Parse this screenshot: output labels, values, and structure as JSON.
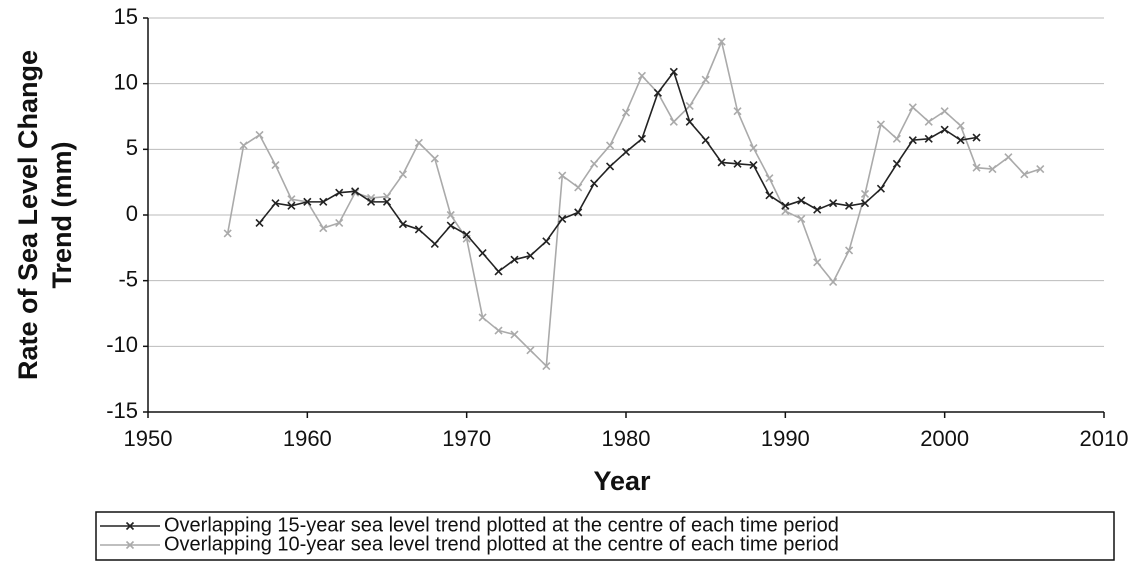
{
  "chart_data": {
    "type": "line",
    "xlabel": "Year",
    "ylabel": [
      "Rate of Sea Level Change",
      "Trend (mm)"
    ],
    "xlim": [
      1950,
      2010
    ],
    "xticks": [
      1950,
      1960,
      1970,
      1980,
      1990,
      2000,
      2010
    ],
    "ylim": [
      -15,
      15
    ],
    "yticks": [
      15,
      10,
      5,
      0,
      -5,
      -10,
      -15
    ],
    "grid": true,
    "legend": "bottom",
    "series": [
      {
        "name": "Overlapping 15-year sea level trend plotted at the centre of each time period",
        "color": "#222222",
        "x": [
          1957,
          1958,
          1959,
          1960,
          1961,
          1962,
          1963,
          1964,
          1965,
          1966,
          1967,
          1968,
          1969,
          1970,
          1971,
          1972,
          1973,
          1974,
          1975,
          1976,
          1977,
          1978,
          1979,
          1980,
          1981,
          1982,
          1983,
          1984,
          1985,
          1986,
          1987,
          1988,
          1989,
          1990,
          1991,
          1992,
          1993,
          1994,
          1995,
          1996,
          1997,
          1998,
          1999,
          2000,
          2001,
          2002
        ],
        "values": [
          -0.6,
          0.9,
          0.7,
          1.0,
          1.0,
          1.7,
          1.8,
          1.0,
          1.0,
          -0.7,
          -1.1,
          -2.2,
          -0.8,
          -1.5,
          -2.9,
          -4.3,
          -3.4,
          -3.1,
          -2.0,
          -0.3,
          0.2,
          2.4,
          3.7,
          4.8,
          5.8,
          9.3,
          10.9,
          7.1,
          5.7,
          4.0,
          3.9,
          3.8,
          1.5,
          0.7,
          1.1,
          0.4,
          0.9,
          0.7,
          0.9,
          2.0,
          3.9,
          5.7,
          5.8,
          6.5,
          5.7,
          5.9
        ]
      },
      {
        "name": "Overlapping 10-year sea level trend plotted at the centre of each time period",
        "color": "#aaaaaa",
        "x": [
          1955,
          1956,
          1957,
          1958,
          1959,
          1960,
          1961,
          1962,
          1963,
          1964,
          1965,
          1966,
          1967,
          1968,
          1969,
          1970,
          1971,
          1972,
          1973,
          1974,
          1975,
          1976,
          1977,
          1978,
          1979,
          1980,
          1981,
          1982,
          1983,
          1984,
          1985,
          1986,
          1987,
          1988,
          1989,
          1990,
          1991,
          1992,
          1993,
          1994,
          1995,
          1996,
          1997,
          1998,
          1999,
          2000,
          2001,
          2002,
          2003,
          2004,
          2005,
          2006
        ],
        "values": [
          -1.4,
          5.3,
          6.1,
          3.8,
          1.2,
          1.0,
          -1.0,
          -0.6,
          1.7,
          1.3,
          1.4,
          3.1,
          5.5,
          4.3,
          0.0,
          -1.8,
          -7.8,
          -8.8,
          -9.1,
          -10.3,
          -11.5,
          3.0,
          2.1,
          3.9,
          5.3,
          7.8,
          10.6,
          9.3,
          7.1,
          8.3,
          10.3,
          13.2,
          7.9,
          5.1,
          2.8,
          0.3,
          -0.3,
          -3.6,
          -5.1,
          -2.7,
          1.6,
          6.9,
          5.8,
          8.2,
          7.1,
          7.9,
          6.8,
          3.6,
          3.5,
          4.4,
          3.1,
          3.5
        ]
      }
    ]
  }
}
